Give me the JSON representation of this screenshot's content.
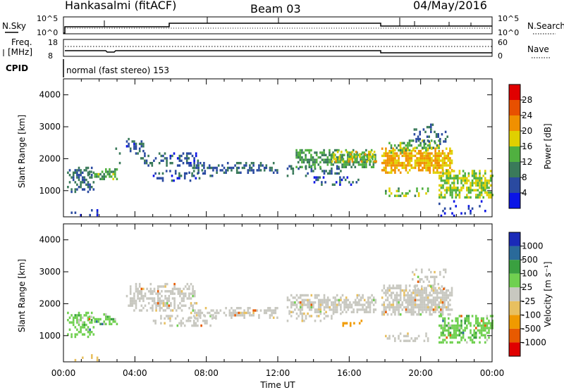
{
  "header": {
    "station": "Hankasalmi (fitACF)",
    "beam": "Beam 03",
    "date": "04/May/2016"
  },
  "strip": {
    "nsky_label": "N.Sky",
    "nsky_top": "10^5",
    "nsky_bottom": "10^0",
    "nsearch_label": "N.Search",
    "nsearch_top": "10^5",
    "nsearch_bottom": "10^0",
    "freq_label": "Freq.",
    "freq_unit": "[MHz]",
    "freq_top": "18",
    "freq_bottom": "8",
    "nave_label": "Nave",
    "nave_top": "60",
    "nave_bottom": "0",
    "cpid_label": "CPID",
    "cpid_text": "normal (fast stereo) 153"
  },
  "colors": {
    "power": [
      "#0a14e6",
      "#2a4aa0",
      "#3a7a5a",
      "#50b040",
      "#e0d000",
      "#f09000",
      "#e85000",
      "#e00000"
    ],
    "velocity": [
      "#e00000",
      "#e85a00",
      "#f09a00",
      "#e8c060",
      "#c8c8c0",
      "#c8c8c0",
      "#70d050",
      "#3aa040",
      "#2a6a9a",
      "#1a2ab8"
    ],
    "background": "#ffffff",
    "axis": "#000000"
  },
  "chart_data": [
    {
      "type": "heatmap",
      "name": "power",
      "ylabel": "Slant Range [km]",
      "xlabel": "",
      "ylim": [
        180,
        4500
      ],
      "yticks": [
        "1000",
        "2000",
        "3000",
        "4000"
      ],
      "xlim": [
        0,
        24
      ],
      "colorbar": {
        "label": "Power [dB]",
        "ticks": [
          "4",
          "8",
          "12",
          "16",
          "20",
          "24",
          "28"
        ],
        "range": [
          0,
          32
        ]
      },
      "patches": [
        {
          "t0": 0.0,
          "t1": 1.9,
          "r0": 250,
          "r1": 420,
          "level": 5,
          "density": 0.35
        },
        {
          "t0": 0.2,
          "t1": 1.7,
          "r0": 950,
          "r1": 1750,
          "level": 8,
          "density": 0.55
        },
        {
          "t0": 1.2,
          "t1": 3.0,
          "r0": 1350,
          "r1": 1700,
          "level": 13,
          "density": 0.7
        },
        {
          "t0": 2.9,
          "t1": 3.2,
          "r0": 1900,
          "r1": 2350,
          "level": 9,
          "density": 0.45
        },
        {
          "t0": 3.5,
          "t1": 4.5,
          "r0": 2200,
          "r1": 2650,
          "level": 7,
          "density": 0.5
        },
        {
          "t0": 4.3,
          "t1": 7.5,
          "r0": 1800,
          "r1": 2200,
          "level": 7,
          "density": 0.5
        },
        {
          "t0": 5.0,
          "t1": 8.5,
          "r0": 1350,
          "r1": 1650,
          "level": 7,
          "density": 0.45
        },
        {
          "t0": 7.0,
          "t1": 12.0,
          "r0": 1600,
          "r1": 1900,
          "level": 8,
          "density": 0.6
        },
        {
          "t0": 12.5,
          "t1": 15.5,
          "r0": 1500,
          "r1": 1800,
          "level": 8,
          "density": 0.5
        },
        {
          "t0": 13.0,
          "t1": 17.5,
          "r0": 1750,
          "r1": 2300,
          "level": 12,
          "density": 0.75
        },
        {
          "t0": 15.0,
          "t1": 17.5,
          "r0": 1900,
          "r1": 2250,
          "level": 18,
          "density": 0.7
        },
        {
          "t0": 14.0,
          "t1": 16.5,
          "r0": 1200,
          "r1": 1450,
          "level": 6,
          "density": 0.4
        },
        {
          "t0": 17.8,
          "t1": 21.8,
          "r0": 1600,
          "r1": 2350,
          "level": 20,
          "density": 0.85
        },
        {
          "t0": 18.2,
          "t1": 21.0,
          "r0": 2200,
          "r1": 2600,
          "level": 14,
          "density": 0.6
        },
        {
          "t0": 19.5,
          "t1": 21.5,
          "r0": 2500,
          "r1": 3100,
          "level": 8,
          "density": 0.3
        },
        {
          "t0": 18.0,
          "t1": 20.5,
          "r0": 850,
          "r1": 1100,
          "level": 14,
          "density": 0.55
        },
        {
          "t0": 21.0,
          "t1": 24.0,
          "r0": 800,
          "r1": 1650,
          "level": 16,
          "density": 0.7
        },
        {
          "t0": 21.0,
          "t1": 24.0,
          "r0": 250,
          "r1": 700,
          "level": 4,
          "density": 0.12
        }
      ]
    },
    {
      "type": "heatmap",
      "name": "velocity",
      "ylabel": "Slant Range [km]",
      "xlabel": "Time UT",
      "ylim": [
        180,
        4500
      ],
      "yticks": [
        "1000",
        "2000",
        "3000",
        "4000"
      ],
      "xlim": [
        0,
        24
      ],
      "xticks": [
        "00:00",
        "04:00",
        "08:00",
        "12:00",
        "16:00",
        "20:00",
        "00:00"
      ],
      "colorbar": {
        "label": "Velocity [m s⁻¹]",
        "ticks": [
          "-1000",
          "-500",
          "-100",
          "-25",
          "25",
          "100",
          "500",
          "1000"
        ]
      },
      "patches": [
        {
          "t0": 0.0,
          "t1": 1.9,
          "r0": 250,
          "r1": 420,
          "cls": 3,
          "density": 0.3
        },
        {
          "t0": 0.2,
          "t1": 1.7,
          "r0": 950,
          "r1": 1750,
          "cls": 6,
          "density": 0.55
        },
        {
          "t0": 1.2,
          "t1": 3.0,
          "r0": 1350,
          "r1": 1700,
          "cls": 6,
          "density": 0.65
        },
        {
          "t0": 3.5,
          "t1": 7.5,
          "r0": 1800,
          "r1": 2650,
          "cls": 4,
          "density": 0.55
        },
        {
          "t0": 5.0,
          "t1": 8.5,
          "r0": 1350,
          "r1": 1650,
          "cls": 4,
          "density": 0.45
        },
        {
          "t0": 7.0,
          "t1": 12.0,
          "r0": 1600,
          "r1": 1900,
          "cls": 4,
          "density": 0.65
        },
        {
          "t0": 12.5,
          "t1": 17.5,
          "r0": 1750,
          "r1": 2300,
          "cls": 4,
          "density": 0.75
        },
        {
          "t0": 12.5,
          "t1": 15.5,
          "r0": 1500,
          "r1": 1800,
          "cls": 4,
          "density": 0.5
        },
        {
          "t0": 17.8,
          "t1": 21.8,
          "r0": 1700,
          "r1": 2600,
          "cls": 4,
          "density": 0.8
        },
        {
          "t0": 19.5,
          "t1": 21.5,
          "r0": 2500,
          "r1": 3100,
          "cls": 4,
          "density": 0.3
        },
        {
          "t0": 18.0,
          "t1": 20.5,
          "r0": 850,
          "r1": 1100,
          "cls": 4,
          "density": 0.55
        },
        {
          "t0": 21.0,
          "t1": 24.0,
          "r0": 800,
          "r1": 1650,
          "cls": 6,
          "density": 0.65
        },
        {
          "t0": 15.2,
          "t1": 17.0,
          "r0": 1300,
          "r1": 1500,
          "cls": 2,
          "density": 0.2
        }
      ]
    }
  ]
}
